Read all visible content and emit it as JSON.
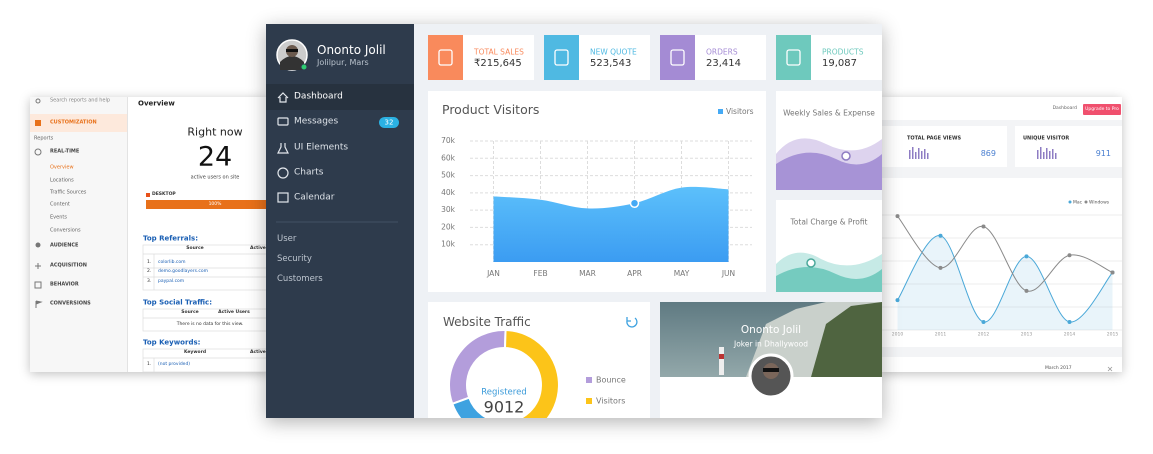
{
  "left_panel": {
    "search": "Search reports and help",
    "menu": [
      "CUSTOMIZATION",
      "Reports",
      "REAL-TIME",
      "Overview",
      "Locations",
      "Traffic Sources",
      "Content",
      "Events",
      "Conversions",
      "AUDIENCE",
      "ACQUISITION",
      "BEHAVIOR",
      "CONVERSIONS"
    ],
    "title": "Overview",
    "right_now": "Right now",
    "active_users": "24",
    "active_label": "active users on site",
    "device": "DESKTOP",
    "device_share": "100%",
    "referrals": {
      "title": "Top Referrals:",
      "columns": [
        "Source",
        "Active"
      ],
      "rows": [
        [
          "1.",
          "colorlib.com"
        ],
        [
          "2.",
          "demo.goodlayers.com"
        ],
        [
          "3.",
          "paypal.com"
        ]
      ]
    },
    "social": {
      "title": "Top Social Traffic:",
      "columns": [
        "Source",
        "Active Users"
      ],
      "empty": "There is no data for this view."
    },
    "keywords": {
      "title": "Top Keywords:",
      "columns": [
        "Keyword",
        "Active"
      ],
      "rows": [
        [
          "1.",
          "(not provided)"
        ]
      ]
    }
  },
  "dashboard": {
    "user": {
      "name": "Ononto Jolil",
      "location": "Jolilpur, Mars"
    },
    "menu": [
      {
        "label": "Dashboard"
      },
      {
        "label": "Messages",
        "badge": "32"
      },
      {
        "label": "UI Elements"
      },
      {
        "label": "Charts"
      },
      {
        "label": "Calendar"
      }
    ],
    "menu_secondary": [
      "User",
      "Security",
      "Customers"
    ],
    "stats": [
      {
        "label": "TOTAL SALES",
        "value": "₹215,645",
        "color": "#f98a5c"
      },
      {
        "label": "NEW QUOTE",
        "value": "523,543",
        "color": "#4fb9e2"
      },
      {
        "label": "ORDERS",
        "value": "23,414",
        "color": "#a48bd4"
      },
      {
        "label": "PRODUCTS",
        "value": "19,087",
        "color": "#6ec9bd"
      }
    ],
    "weekly_title": "Weekly Sales & Expense",
    "charge_title": "Total Charge & Profit",
    "profile": {
      "name": "Ononto Jolil",
      "role": "Joker in Dhallywood"
    }
  },
  "chart_data": [
    {
      "type": "area",
      "title": "Product Visitors",
      "categories": [
        "JAN",
        "FEB",
        "MAR",
        "APR",
        "MAY",
        "JUN"
      ],
      "series": [
        {
          "name": "Visitors",
          "color": "#45aaf5",
          "values": [
            38000,
            36000,
            31000,
            34000,
            43000,
            42000
          ]
        }
      ],
      "ylim": [
        0,
        70000
      ],
      "yticks": [
        {
          "value": 10000,
          "label": "10k"
        },
        {
          "value": 20000,
          "label": "20k"
        },
        {
          "value": 30000,
          "label": "30k"
        },
        {
          "value": 40000,
          "label": "40k"
        },
        {
          "value": 50000,
          "label": "50k"
        },
        {
          "value": 60000,
          "label": "60k"
        },
        {
          "value": 70000,
          "label": "70k"
        }
      ],
      "grid": true
    },
    {
      "type": "pie",
      "title": "Website Traffic",
      "categories": [
        "Bounce",
        "Visitors",
        null
      ],
      "values": [
        31,
        50,
        19
      ],
      "colors": [
        "#b39ddb",
        "#fcc419",
        "#3ea2e0"
      ],
      "center_label": "Registered",
      "center_value": 9012
    },
    {
      "type": "line",
      "categories": [
        "2010",
        "2011",
        "2012",
        "2013",
        "2014",
        "2015"
      ],
      "series": [
        {
          "name": "Mac",
          "color": "#4aa8d8",
          "values": [
            26,
            82,
            7,
            64,
            7,
            50
          ]
        },
        {
          "name": "Windows",
          "color": "#8a8a8a",
          "values": [
            99,
            54,
            90,
            34,
            65,
            50
          ]
        }
      ],
      "ylim": [
        0,
        100
      ]
    }
  ],
  "right_panel": {
    "breadcrumb": "Dashboard",
    "button": "Upgrade to Pro",
    "stats": [
      {
        "label": "TOTAL PAGE VIEWS",
        "value": "869"
      },
      {
        "label": "UNIQUE VISITOR",
        "value": "911"
      }
    ],
    "date": "March 2017"
  }
}
